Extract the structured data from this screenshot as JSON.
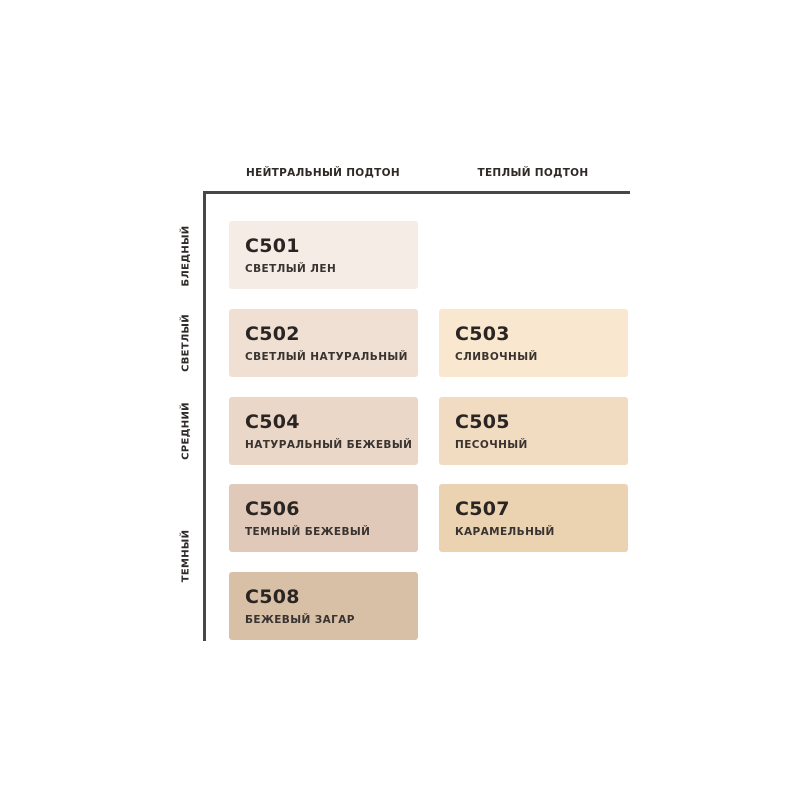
{
  "columns": [
    "НЕЙТРАЛЬНЫЙ ПОДТОН",
    "ТЕПЛЫЙ ПОДТОН"
  ],
  "rows": [
    "БЛЕДНЫЙ",
    "СВЕТЛЫЙ",
    "СРЕДНИЙ",
    "ТЕМНЫЙ"
  ],
  "shades": [
    {
      "code": "C501",
      "name": "СВЕТЛЫЙ ЛЕН",
      "color": "#f5ece5"
    },
    {
      "code": "C502",
      "name": "СВЕТЛЫЙ НАТУРАЛЬНЫЙ",
      "color": "#f0e0d4"
    },
    {
      "code": "C503",
      "name": "СЛИВОЧНЫЙ",
      "color": "#f9e7cf"
    },
    {
      "code": "C504",
      "name": "НАТУРАЛЬНЫЙ БЕЖЕВЫЙ",
      "color": "#ebd7c8"
    },
    {
      "code": "C505",
      "name": "ПЕСОЧНЫЙ",
      "color": "#f1dbc1"
    },
    {
      "code": "C506",
      "name": "ТЕМНЫЙ БЕЖЕВЫЙ",
      "color": "#e0c9b8"
    },
    {
      "code": "C507",
      "name": "КАРАМЕЛЬНЫЙ",
      "color": "#ebd2b1"
    },
    {
      "code": "C508",
      "name": "БЕЖЕВЫЙ ЗАГАР",
      "color": "#d8c0a7"
    }
  ]
}
